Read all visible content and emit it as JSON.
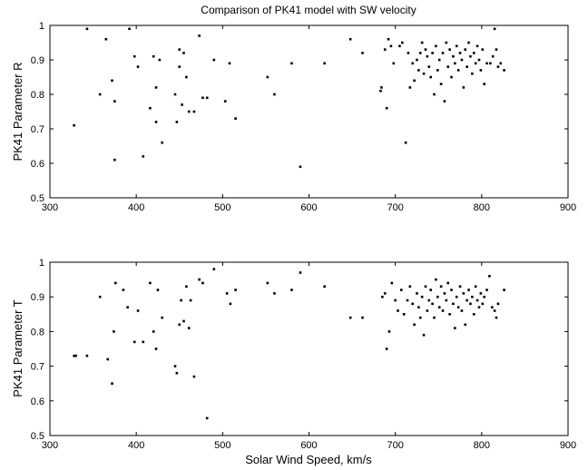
{
  "chart_data": [
    {
      "type": "scatter",
      "title": "Comparison of PK41 model with SW velocity",
      "xlabel": "",
      "ylabel": "PK41 Parameter R",
      "xlim": [
        300,
        900
      ],
      "ylim": [
        0.5,
        1
      ],
      "xticks": [
        "300",
        "400",
        "500",
        "600",
        "700",
        "800",
        "900"
      ],
      "yticks": [
        "0.5",
        "0.6",
        "0.7",
        "0.8",
        "0.9",
        "1"
      ],
      "marker_color": "#000000",
      "grid": false,
      "points": [
        [
          328,
          0.71
        ],
        [
          343,
          0.99
        ],
        [
          358,
          0.8
        ],
        [
          365,
          0.96
        ],
        [
          372,
          0.84
        ],
        [
          375,
          0.78
        ],
        [
          375,
          0.61
        ],
        [
          392,
          0.99
        ],
        [
          398,
          0.91
        ],
        [
          402,
          0.88
        ],
        [
          408,
          0.62
        ],
        [
          416,
          0.76
        ],
        [
          420,
          0.91
        ],
        [
          423,
          0.82
        ],
        [
          423,
          0.72
        ],
        [
          427,
          0.9
        ],
        [
          430,
          0.66
        ],
        [
          445,
          0.8
        ],
        [
          447,
          0.72
        ],
        [
          450,
          0.88
        ],
        [
          450,
          0.93
        ],
        [
          453,
          0.77
        ],
        [
          455,
          0.92
        ],
        [
          458,
          0.85
        ],
        [
          461,
          0.75
        ],
        [
          467,
          0.75
        ],
        [
          473,
          0.97
        ],
        [
          477,
          0.79
        ],
        [
          482,
          0.79
        ],
        [
          490,
          0.9
        ],
        [
          503,
          0.78
        ],
        [
          508,
          0.89
        ],
        [
          515,
          0.73
        ],
        [
          552,
          0.85
        ],
        [
          560,
          0.8
        ],
        [
          580,
          0.89
        ],
        [
          590,
          0.59
        ],
        [
          618,
          0.89
        ],
        [
          648,
          0.96
        ],
        [
          662,
          0.92
        ],
        [
          683,
          0.81
        ],
        [
          684,
          0.82
        ],
        [
          688,
          0.93
        ],
        [
          690,
          0.76
        ],
        [
          692,
          0.96
        ],
        [
          695,
          0.94
        ],
        [
          698,
          0.89
        ],
        [
          705,
          0.94
        ],
        [
          708,
          0.95
        ],
        [
          712,
          0.66
        ],
        [
          715,
          0.92
        ],
        [
          717,
          0.82
        ],
        [
          720,
          0.89
        ],
        [
          722,
          0.84
        ],
        [
          725,
          0.9
        ],
        [
          727,
          0.87
        ],
        [
          729,
          0.92
        ],
        [
          731,
          0.95
        ],
        [
          733,
          0.86
        ],
        [
          735,
          0.93
        ],
        [
          737,
          0.91
        ],
        [
          739,
          0.88
        ],
        [
          741,
          0.85
        ],
        [
          743,
          0.92
        ],
        [
          745,
          0.8
        ],
        [
          747,
          0.94
        ],
        [
          749,
          0.87
        ],
        [
          751,
          0.9
        ],
        [
          753,
          0.83
        ],
        [
          755,
          0.92
        ],
        [
          757,
          0.78
        ],
        [
          759,
          0.95
        ],
        [
          761,
          0.88
        ],
        [
          763,
          0.93
        ],
        [
          765,
          0.85
        ],
        [
          767,
          0.91
        ],
        [
          769,
          0.89
        ],
        [
          771,
          0.94
        ],
        [
          773,
          0.87
        ],
        [
          775,
          0.92
        ],
        [
          777,
          0.9
        ],
        [
          779,
          0.82
        ],
        [
          781,
          0.93
        ],
        [
          783,
          0.88
        ],
        [
          785,
          0.95
        ],
        [
          787,
          0.91
        ],
        [
          789,
          0.86
        ],
        [
          791,
          0.92
        ],
        [
          793,
          0.89
        ],
        [
          795,
          0.94
        ],
        [
          797,
          0.9
        ],
        [
          799,
          0.87
        ],
        [
          801,
          0.93
        ],
        [
          803,
          0.83
        ],
        [
          806,
          0.89
        ],
        [
          810,
          0.89
        ],
        [
          813,
          0.91
        ],
        [
          815,
          0.99
        ],
        [
          817,
          0.93
        ],
        [
          819,
          0.88
        ],
        [
          822,
          0.89
        ],
        [
          826,
          0.87
        ]
      ]
    },
    {
      "type": "scatter",
      "title": "",
      "xlabel": "Solar Wind Speed, km/s",
      "ylabel": "PK41 Parameter T",
      "xlim": [
        300,
        900
      ],
      "ylim": [
        0.5,
        1
      ],
      "xticks": [
        "300",
        "400",
        "500",
        "600",
        "700",
        "800",
        "900"
      ],
      "yticks": [
        "0.5",
        "0.6",
        "0.7",
        "0.8",
        "0.9",
        "1"
      ],
      "marker_color": "#000000",
      "grid": false,
      "points": [
        [
          328,
          0.73
        ],
        [
          330,
          0.73
        ],
        [
          343,
          0.73
        ],
        [
          358,
          0.9
        ],
        [
          367,
          0.72
        ],
        [
          372,
          0.65
        ],
        [
          374,
          0.8
        ],
        [
          376,
          0.94
        ],
        [
          385,
          0.92
        ],
        [
          390,
          0.87
        ],
        [
          398,
          0.77
        ],
        [
          402,
          0.86
        ],
        [
          408,
          0.77
        ],
        [
          416,
          0.94
        ],
        [
          420,
          0.8
        ],
        [
          423,
          0.75
        ],
        [
          425,
          0.92
        ],
        [
          430,
          0.84
        ],
        [
          445,
          0.7
        ],
        [
          447,
          0.68
        ],
        [
          450,
          0.82
        ],
        [
          452,
          0.89
        ],
        [
          455,
          0.83
        ],
        [
          458,
          0.93
        ],
        [
          461,
          0.81
        ],
        [
          463,
          0.89
        ],
        [
          467,
          0.67
        ],
        [
          473,
          0.95
        ],
        [
          477,
          0.94
        ],
        [
          482,
          0.55
        ],
        [
          490,
          0.98
        ],
        [
          505,
          0.91
        ],
        [
          509,
          0.88
        ],
        [
          515,
          0.92
        ],
        [
          552,
          0.94
        ],
        [
          560,
          0.91
        ],
        [
          580,
          0.92
        ],
        [
          590,
          0.97
        ],
        [
          618,
          0.93
        ],
        [
          648,
          0.84
        ],
        [
          662,
          0.84
        ],
        [
          685,
          0.9
        ],
        [
          688,
          0.91
        ],
        [
          690,
          0.75
        ],
        [
          693,
          0.8
        ],
        [
          696,
          0.94
        ],
        [
          700,
          0.89
        ],
        [
          703,
          0.86
        ],
        [
          707,
          0.92
        ],
        [
          710,
          0.85
        ],
        [
          714,
          0.89
        ],
        [
          717,
          0.93
        ],
        [
          720,
          0.88
        ],
        [
          722,
          0.82
        ],
        [
          725,
          0.91
        ],
        [
          727,
          0.87
        ],
        [
          729,
          0.84
        ],
        [
          731,
          0.9
        ],
        [
          733,
          0.79
        ],
        [
          735,
          0.93
        ],
        [
          737,
          0.86
        ],
        [
          739,
          0.89
        ],
        [
          741,
          0.92
        ],
        [
          743,
          0.88
        ],
        [
          745,
          0.84
        ],
        [
          747,
          0.95
        ],
        [
          749,
          0.9
        ],
        [
          751,
          0.87
        ],
        [
          753,
          0.93
        ],
        [
          755,
          0.86
        ],
        [
          757,
          0.91
        ],
        [
          759,
          0.89
        ],
        [
          761,
          0.94
        ],
        [
          763,
          0.85
        ],
        [
          765,
          0.92
        ],
        [
          767,
          0.88
        ],
        [
          769,
          0.81
        ],
        [
          771,
          0.9
        ],
        [
          773,
          0.87
        ],
        [
          775,
          0.93
        ],
        [
          777,
          0.86
        ],
        [
          779,
          0.91
        ],
        [
          781,
          0.82
        ],
        [
          783,
          0.89
        ],
        [
          785,
          0.92
        ],
        [
          787,
          0.88
        ],
        [
          789,
          0.9
        ],
        [
          791,
          0.85
        ],
        [
          793,
          0.93
        ],
        [
          795,
          0.89
        ],
        [
          797,
          0.87
        ],
        [
          799,
          0.91
        ],
        [
          801,
          0.88
        ],
        [
          803,
          0.9
        ],
        [
          806,
          0.92
        ],
        [
          809,
          0.96
        ],
        [
          812,
          0.87
        ],
        [
          815,
          0.86
        ],
        [
          817,
          0.84
        ],
        [
          819,
          0.88
        ],
        [
          826,
          0.92
        ]
      ]
    }
  ]
}
